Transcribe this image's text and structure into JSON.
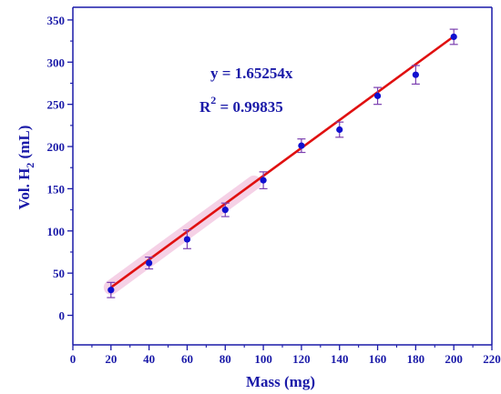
{
  "chart_data": {
    "type": "scatter",
    "xlabel": "Mass (mg)",
    "ylabel_main": "Vol. H",
    "ylabel_sub": "2",
    "ylabel_tail": " (mL)",
    "xlim": [
      0,
      220
    ],
    "ylim": [
      -35,
      365
    ],
    "x_ticks": [
      0,
      20,
      40,
      60,
      80,
      100,
      120,
      140,
      160,
      180,
      200,
      220
    ],
    "y_ticks": [
      0,
      50,
      100,
      150,
      200,
      250,
      300,
      350
    ],
    "series": [
      {
        "x": [
          20,
          40,
          60,
          80,
          100,
          120,
          140,
          160,
          180,
          200
        ],
        "y": [
          30,
          62,
          90,
          125,
          160,
          201,
          220,
          260,
          285,
          330
        ],
        "yerr": [
          9,
          7,
          11,
          8,
          10,
          8,
          9,
          10,
          11,
          9
        ]
      }
    ],
    "fit": {
      "slope": 1.65254,
      "x_range": [
        20,
        200
      ],
      "equation_text": "y = 1.65254x",
      "r2_label": "R",
      "r2_sup": "2",
      "r2_value_text": " = 0.99835"
    },
    "grid": false,
    "colors": {
      "axis": "#1a1aa8",
      "marker": "#1010d0",
      "errorbar": "#7b3fb0",
      "fit_line": "#e01010",
      "shadow": "#f3c6e0"
    }
  }
}
